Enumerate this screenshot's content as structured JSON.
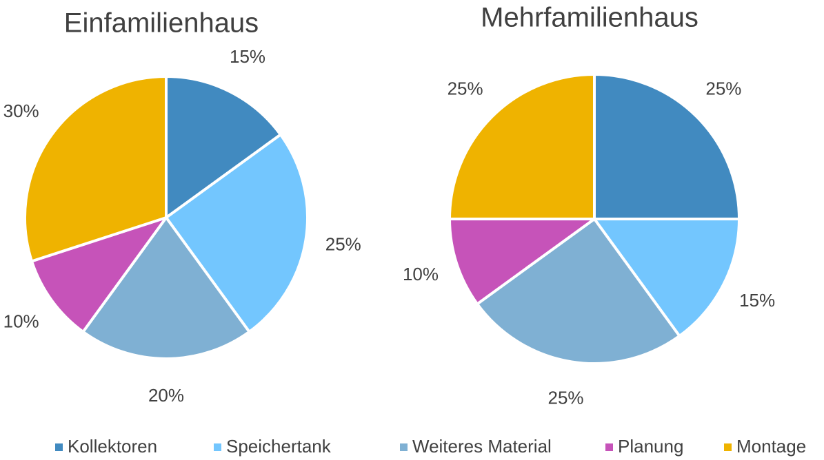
{
  "chart_data": [
    {
      "type": "pie",
      "title": "Einfamilienhaus",
      "values": [
        15,
        25,
        20,
        10,
        30
      ],
      "value_labels": [
        "15%",
        "25%",
        "20%",
        "10%",
        "30%"
      ]
    },
    {
      "type": "pie",
      "title": "Mehrfamilienhaus",
      "values": [
        25,
        15,
        25,
        10,
        25
      ],
      "value_labels": [
        "25%",
        "15%",
        "25%",
        "10%",
        "25%"
      ]
    }
  ],
  "legend": {
    "items": [
      {
        "name": "Kollektoren",
        "color": "#418ac0"
      },
      {
        "name": "Speichertank",
        "color": "#73c6fe"
      },
      {
        "name": "Weiteres Material",
        "color": "#7fb0d3"
      },
      {
        "name": "Planung",
        "color": "#c653b9"
      },
      {
        "name": "Montage",
        "color": "#efb300"
      }
    ]
  }
}
